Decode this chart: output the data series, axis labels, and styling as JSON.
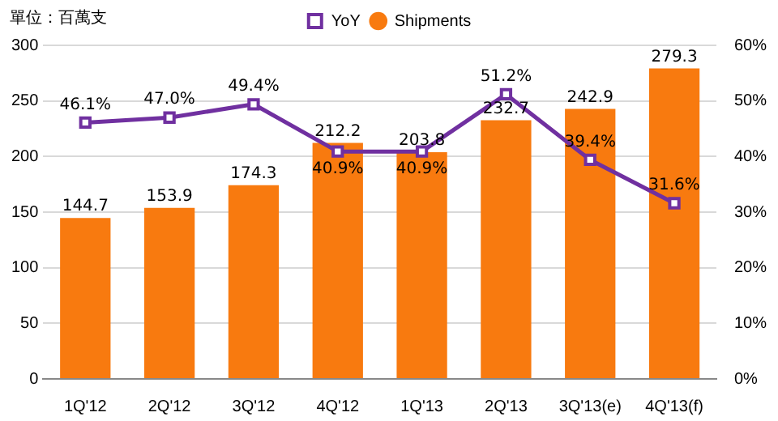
{
  "chart_data": {
    "type": "bar",
    "annotations": [
      "單位：百萬支"
    ],
    "categories": [
      "1Q'12",
      "2Q'12",
      "3Q'12",
      "4Q'12",
      "1Q'13",
      "2Q'13",
      "3Q'13(e)",
      "4Q'13(f)"
    ],
    "series": [
      {
        "name": "Shipments",
        "color": "#f87a0f",
        "values": [
          144.7,
          153.9,
          174.3,
          212.2,
          203.8,
          232.7,
          242.9,
          279.3
        ],
        "value_labels": [
          "144.7",
          "153.9",
          "174.3",
          "212.2",
          "203.8",
          "232.7",
          "242.9",
          "279.3"
        ]
      },
      {
        "name": "YoY",
        "type": "line",
        "axis": "y2",
        "color": "#7030a0",
        "marker": "square",
        "values": [
          46.1,
          47.0,
          49.4,
          40.9,
          40.9,
          51.2,
          39.4,
          31.6
        ],
        "value_labels": [
          "46.1%",
          "47.0%",
          "49.4%",
          "40.9%",
          "40.9%",
          "51.2%",
          "39.4%",
          "31.6%"
        ]
      }
    ],
    "ylim": [
      0,
      300
    ],
    "yticks": [
      0,
      50,
      100,
      150,
      200,
      250,
      300
    ],
    "y2lim": [
      0,
      60
    ],
    "y2ticks": [
      {
        "value": 0,
        "label": "0%"
      },
      {
        "value": 10,
        "label": "10%"
      },
      {
        "value": 20,
        "label": "20%"
      },
      {
        "value": 30,
        "label": "30%"
      },
      {
        "value": 40,
        "label": "40%"
      },
      {
        "value": 50,
        "label": "50%"
      },
      {
        "value": 60,
        "label": "60%"
      }
    ],
    "grid": "y",
    "legend": "top"
  }
}
